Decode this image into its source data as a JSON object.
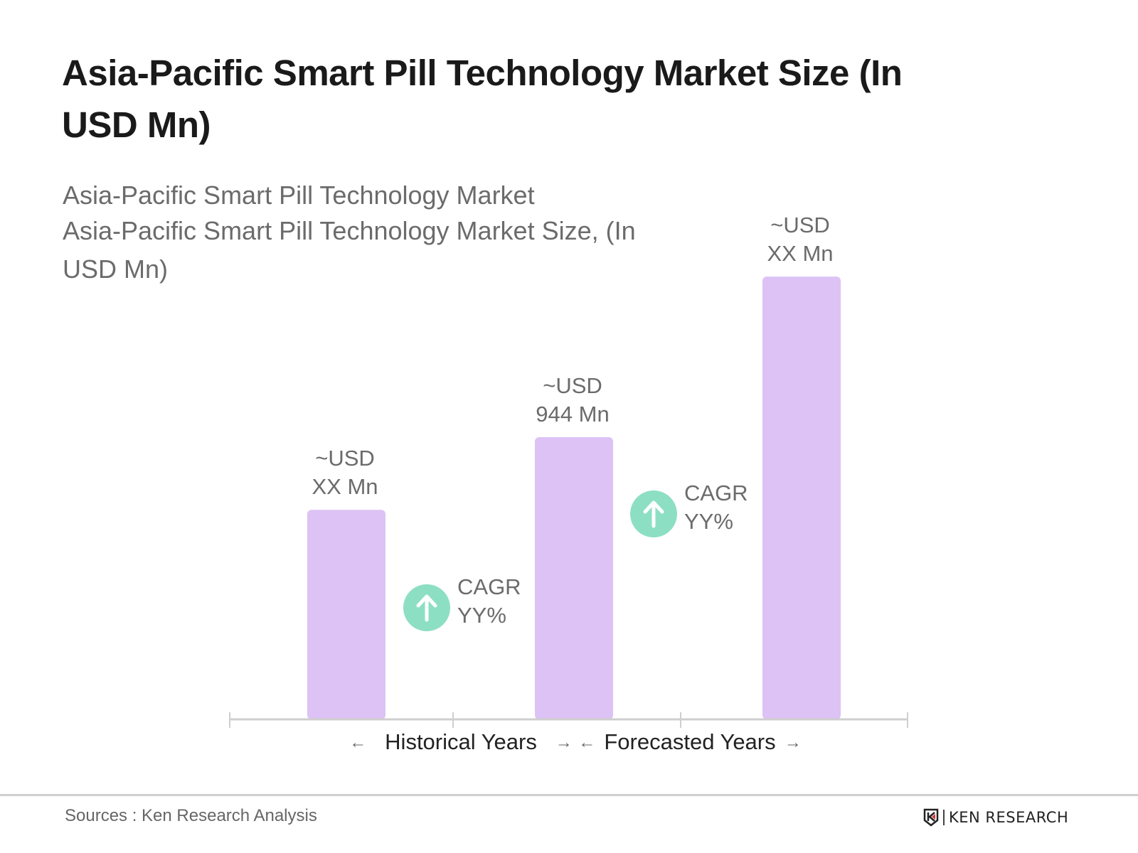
{
  "header": {
    "title": "Asia-Pacific Smart Pill Technology Market Size (In USD Mn)"
  },
  "subtitle": {
    "line1": "Asia-Pacific Smart Pill Technology Market",
    "line2": "Asia-Pacific Smart Pill Technology Market Size, (In",
    "line3": "USD Mn)"
  },
  "chart_data": {
    "type": "bar",
    "title": "Asia-Pacific Smart Pill Technology Market Size (In USD Mn)",
    "categories": [
      "",
      "",
      ""
    ],
    "values": [
      701,
      944,
      1481
    ],
    "data_labels": [
      [
        "~USD",
        "XX Mn"
      ],
      [
        "~USD",
        "944 Mn"
      ],
      [
        "~USD",
        "XX Mn"
      ]
    ],
    "annotations": [
      {
        "label": "CAGR",
        "value": "YY%",
        "icon": "arrow-up-circle-icon"
      },
      {
        "label": "CAGR",
        "value": "YY%",
        "icon": "arrow-up-circle-icon"
      }
    ],
    "period_labels": [
      "Historical Years",
      "Forecasted Years"
    ],
    "grid": false,
    "bar_color": "#dcc2f5",
    "cagr_color": "#8ddfc4",
    "axis_color": "#cfcfcf"
  },
  "footer": {
    "sources": "Sources : Ken Research Analysis",
    "logo": "KEN RESEARCH"
  }
}
